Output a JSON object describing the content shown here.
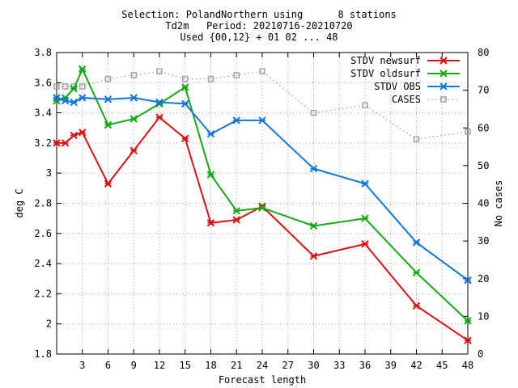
{
  "header": {
    "line1": "Selection: PolandNorthern using      8 stations",
    "line2": "Td2m   Period: 20210716-20210720",
    "line3": "Used {00,12} + 01 02 ... 48"
  },
  "chart_data": {
    "type": "line",
    "xlabel": "Forecast length",
    "ylabel": "deg C",
    "y2label": "No cases",
    "xlim": [
      0,
      48
    ],
    "ylim": [
      1.8,
      3.8
    ],
    "y2lim": [
      0,
      80
    ],
    "xticks": [
      3,
      6,
      9,
      12,
      15,
      18,
      21,
      24,
      27,
      30,
      33,
      36,
      39,
      42,
      45,
      48
    ],
    "yticks": [
      1.8,
      2,
      2.2,
      2.4,
      2.6,
      2.8,
      3,
      3.2,
      3.4,
      3.6,
      3.8
    ],
    "ytick_labels": [
      "1.8",
      "2",
      "2.2",
      "2.4",
      "2.6",
      "2.8",
      "3",
      "3.2",
      "3.4",
      "3.6",
      "3.8"
    ],
    "y2ticks": [
      0,
      10,
      20,
      30,
      40,
      50,
      60,
      70,
      80
    ],
    "grid": true,
    "legend_position": "top-right",
    "series": [
      {
        "name": "STDV newsurf",
        "color": "#dd1111",
        "marker": "x",
        "axis": "left",
        "x": [
          0,
          1,
          2,
          3,
          6,
          9,
          12,
          15,
          18,
          21,
          24,
          30,
          36,
          42,
          48
        ],
        "values": [
          3.2,
          3.2,
          3.25,
          3.27,
          2.93,
          3.15,
          3.37,
          3.23,
          2.67,
          2.69,
          2.78,
          2.45,
          2.53,
          2.12,
          1.89
        ]
      },
      {
        "name": "STDV oldsurf",
        "color": "#11aa11",
        "marker": "x",
        "axis": "left",
        "x": [
          0,
          1,
          2,
          3,
          6,
          9,
          12,
          15,
          18,
          21,
          24,
          30,
          36,
          42,
          48
        ],
        "values": [
          3.48,
          3.5,
          3.56,
          3.69,
          3.32,
          3.36,
          3.46,
          3.57,
          2.99,
          2.75,
          2.77,
          2.65,
          2.7,
          2.34,
          2.02
        ]
      },
      {
        "name": "STDV OBS",
        "color": "#1177dd",
        "marker": "x",
        "axis": "left",
        "x": [
          0,
          1,
          2,
          3,
          6,
          9,
          12,
          15,
          18,
          21,
          24,
          30,
          36,
          42,
          48
        ],
        "values": [
          3.5,
          3.48,
          3.47,
          3.5,
          3.49,
          3.5,
          3.47,
          3.46,
          3.26,
          3.35,
          3.35,
          3.03,
          2.93,
          2.54,
          2.29
        ]
      },
      {
        "name": "CASES",
        "color": "#a0a0a0",
        "marker": "square",
        "axis": "right",
        "dashed": true,
        "x": [
          0,
          1,
          2,
          3,
          6,
          9,
          12,
          15,
          18,
          21,
          24,
          30,
          36,
          42,
          48
        ],
        "values": [
          71,
          71,
          71,
          71,
          73,
          74,
          75,
          73,
          73,
          74,
          75,
          64,
          66,
          57,
          59
        ]
      }
    ]
  }
}
